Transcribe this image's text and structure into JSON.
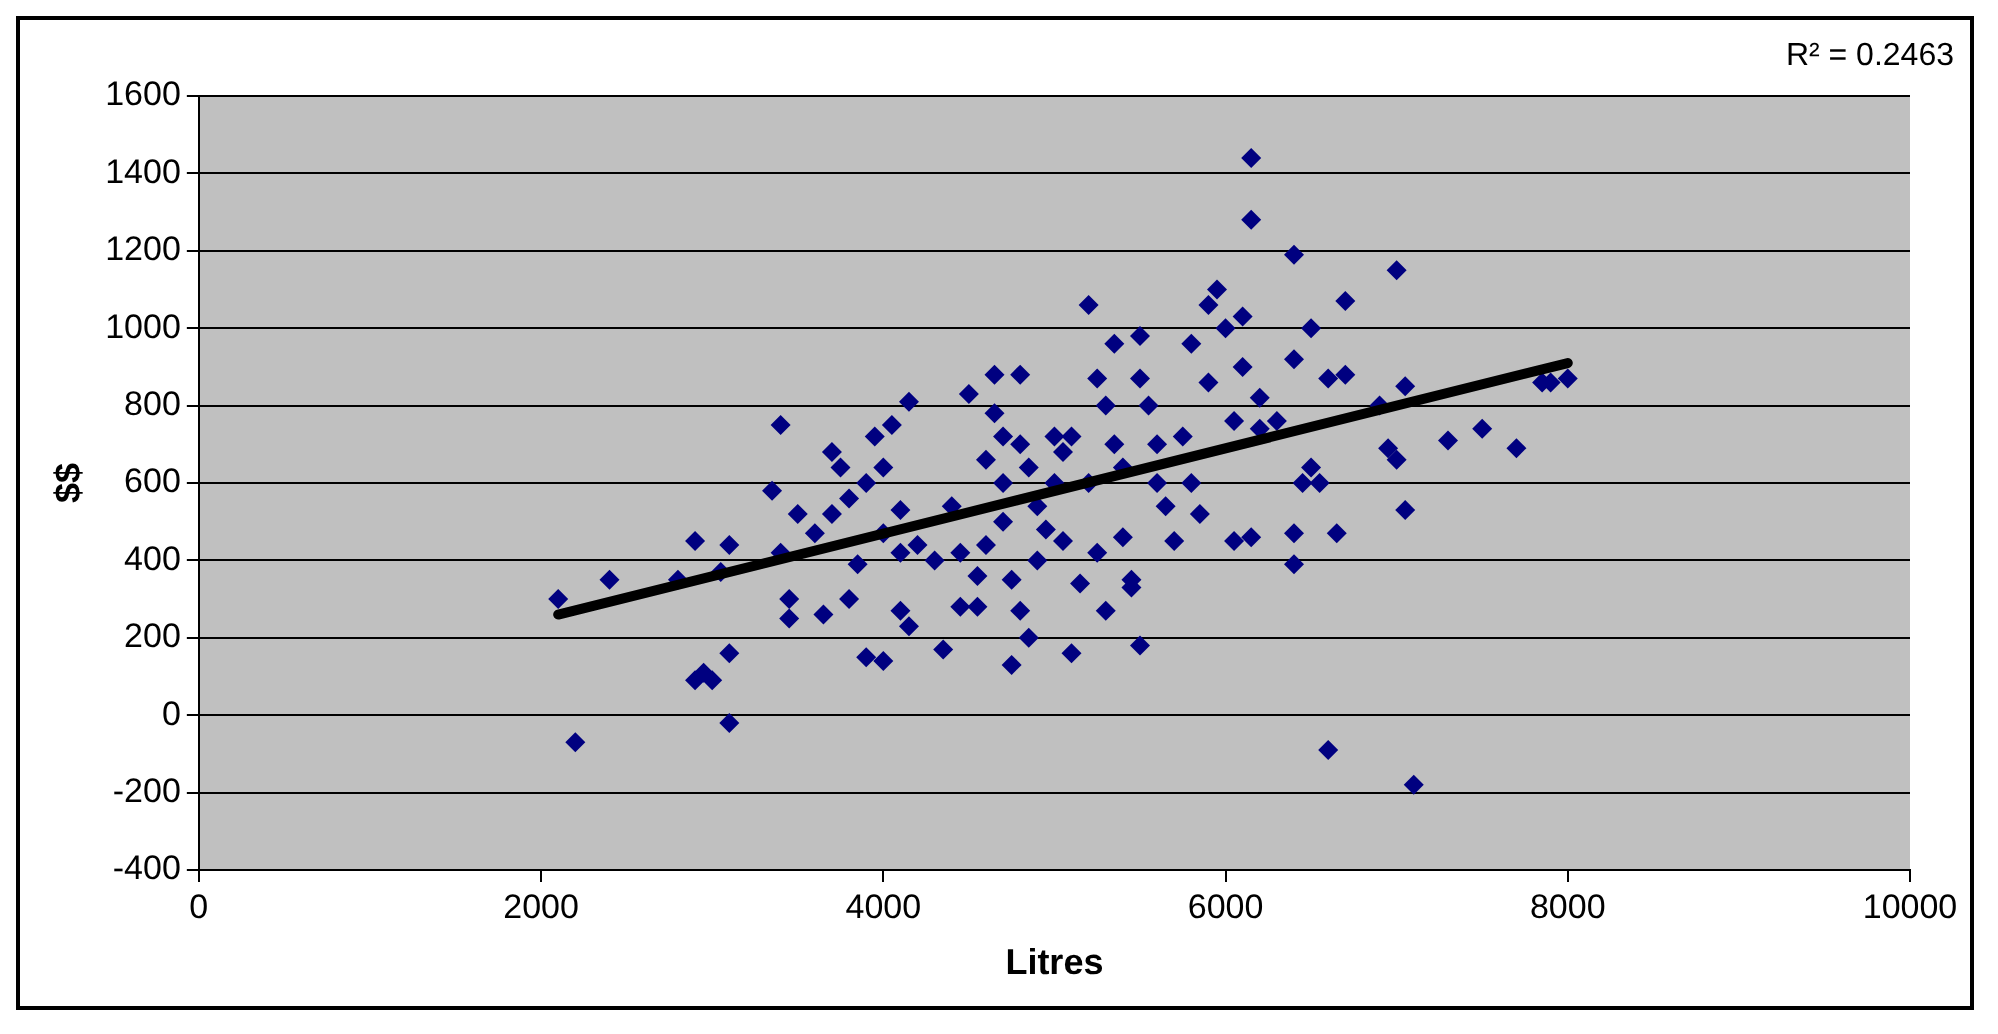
{
  "chart_data": {
    "type": "scatter",
    "xlabel": "Litres",
    "ylabel": "$$",
    "annotations": [
      "R² = 0.2463"
    ],
    "xlim": [
      0,
      10000
    ],
    "xticks": [
      0,
      2000,
      4000,
      6000,
      8000,
      10000
    ],
    "ylim": [
      -400,
      1600
    ],
    "yticks": [
      -400,
      -200,
      0,
      200,
      400,
      600,
      800,
      1000,
      1200,
      1400,
      1600
    ],
    "grid": "y",
    "legend": false,
    "marker": "diamond",
    "series": [
      {
        "color": "#000080",
        "x": [
          2100,
          2200,
          2400,
          2800,
          2900,
          2900,
          2950,
          3000,
          3050,
          3100,
          3100,
          3100,
          3350,
          3400,
          3400,
          3450,
          3450,
          3500,
          3600,
          3650,
          3700,
          3700,
          3750,
          3800,
          3800,
          3850,
          3900,
          3900,
          3950,
          4000,
          4000,
          4000,
          4050,
          4100,
          4100,
          4100,
          4150,
          4150,
          4200,
          4300,
          4350,
          4400,
          4450,
          4450,
          4500,
          4550,
          4550,
          4600,
          4600,
          4650,
          4650,
          4700,
          4700,
          4700,
          4750,
          4750,
          4800,
          4800,
          4800,
          4850,
          4850,
          4900,
          4900,
          4950,
          5000,
          5000,
          5050,
          5050,
          5100,
          5100,
          5150,
          5200,
          5200,
          5250,
          5250,
          5300,
          5300,
          5350,
          5350,
          5400,
          5400,
          5450,
          5450,
          5500,
          5500,
          5500,
          5550,
          5600,
          5600,
          5650,
          5700,
          5750,
          5800,
          5800,
          5850,
          5900,
          5900,
          5950,
          6000,
          6050,
          6050,
          6100,
          6100,
          6150,
          6150,
          6150,
          6200,
          6200,
          6300,
          6400,
          6400,
          6400,
          6450,
          6400,
          6500,
          6500,
          6550,
          6600,
          6600,
          6650,
          6700,
          6700,
          6900,
          6950,
          7000,
          7000,
          7050,
          7050,
          7100,
          7300,
          7500,
          7700,
          7850,
          7900,
          8000
        ],
        "values": [
          300,
          -70,
          350,
          350,
          450,
          90,
          110,
          90,
          370,
          440,
          -20,
          160,
          580,
          750,
          420,
          250,
          300,
          520,
          470,
          260,
          520,
          680,
          640,
          560,
          300,
          390,
          150,
          600,
          720,
          140,
          640,
          470,
          750,
          270,
          420,
          530,
          810,
          230,
          440,
          400,
          170,
          540,
          280,
          420,
          830,
          360,
          280,
          660,
          440,
          880,
          780,
          720,
          600,
          500,
          130,
          350,
          880,
          270,
          700,
          200,
          640,
          400,
          540,
          480,
          720,
          600,
          450,
          680,
          720,
          160,
          340,
          1060,
          600,
          870,
          420,
          800,
          270,
          700,
          960,
          460,
          640,
          330,
          350,
          980,
          870,
          180,
          800,
          700,
          600,
          540,
          450,
          720,
          960,
          600,
          520,
          1060,
          860,
          1100,
          1000,
          760,
          450,
          900,
          1030,
          1440,
          1280,
          460,
          820,
          740,
          760,
          1190,
          920,
          470,
          600,
          390,
          1000,
          640,
          600,
          870,
          -90,
          470,
          1070,
          880,
          800,
          690,
          660,
          1150,
          850,
          530,
          -180,
          710,
          740,
          690,
          860,
          860,
          870
        ]
      },
      {
        "type": "line",
        "color": "#000000",
        "marker": "none",
        "x": [
          2100,
          8000
        ],
        "values": [
          260,
          910
        ]
      }
    ]
  }
}
